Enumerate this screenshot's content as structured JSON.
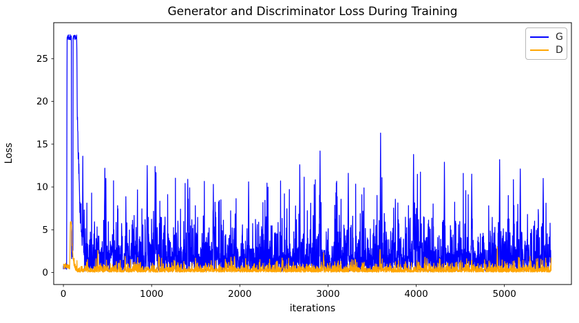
{
  "chart_data": {
    "type": "line",
    "title": "Generator and Discriminator Loss During Training",
    "xlabel": "iterations",
    "ylabel": "Loss",
    "xlim": [
      -110,
      5760
    ],
    "ylim": [
      -1.4,
      29.2
    ],
    "xticks": [
      0,
      1000,
      2000,
      3000,
      4000,
      5000
    ],
    "yticks": [
      0,
      5,
      10,
      15,
      20,
      25
    ],
    "x_range": [
      0,
      5530
    ],
    "grid": false,
    "legend": {
      "position": "upper right",
      "entries": [
        {
          "label": "G",
          "color": "#0000ff"
        },
        {
          "label": "D",
          "color": "#ffa500"
        }
      ]
    },
    "series": [
      {
        "name": "G",
        "color": "#0000ff",
        "envelope": {
          "min": 0.15,
          "exp_mean": 2.05,
          "cap": 11.8
        },
        "initial_spike": {
          "flat_until": 36,
          "flat_value": 0.7,
          "peak_start": 42,
          "peak_end": 150,
          "peak_value": 27.8,
          "gap_at": 100,
          "gap_width": 8,
          "gap_value": 1.6,
          "decay_tau": 32,
          "decay_until": 235
        },
        "notable_peaks": [
          [
            220,
            13.6
          ],
          [
            470,
            12.2
          ],
          [
            950,
            12.5
          ],
          [
            1040,
            12.4
          ],
          [
            1410,
            10.9
          ],
          [
            1700,
            10.3
          ],
          [
            2100,
            10.6
          ],
          [
            2680,
            12.6
          ],
          [
            2910,
            14.2
          ],
          [
            3230,
            11.6
          ],
          [
            3595,
            16.3
          ],
          [
            3970,
            13.8
          ],
          [
            4320,
            12.9
          ],
          [
            4630,
            11.5
          ],
          [
            4945,
            13.2
          ],
          [
            5180,
            12.1
          ],
          [
            5440,
            11.0
          ]
        ]
      },
      {
        "name": "D",
        "color": "#ffa500",
        "envelope": {
          "min": 0.04,
          "exp_mean": 0.33,
          "cap": 1.9
        },
        "initial_spike": {
          "flat_until": 72,
          "flat_value": 0.8,
          "peak_start": 78,
          "peak_end": 92,
          "peak_value": 6.0,
          "gap_at": null,
          "gap_width": 0,
          "gap_value": 0,
          "decay_tau": 16,
          "decay_until": 150
        },
        "notable_peaks": [
          [
            390,
            2.6
          ],
          [
            700,
            1.9
          ],
          [
            1080,
            2.1
          ],
          [
            1900,
            1.8
          ],
          [
            2480,
            1.7
          ],
          [
            2950,
            2.3
          ],
          [
            3590,
            2.7
          ],
          [
            4100,
            1.8
          ],
          [
            4920,
            3.0
          ],
          [
            5290,
            1.9
          ]
        ]
      }
    ]
  }
}
